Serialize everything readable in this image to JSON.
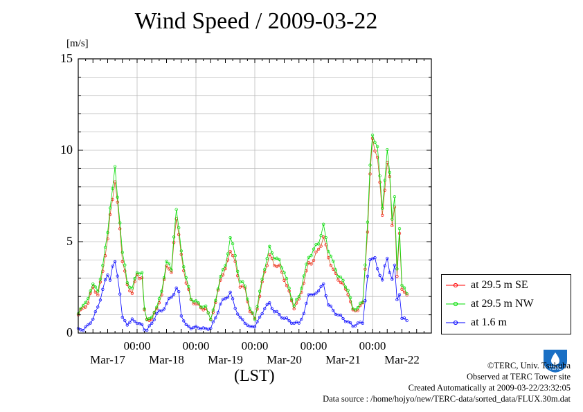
{
  "title": "Wind Speed / 2009-03-22",
  "y_unit": "[m/s]",
  "x_axis_label": "(LST)",
  "credits": [
    "©TERC, Univ. Tsukuba",
    "Observed at TERC Tower site",
    "Created Automatically at 2009-03-22/23:32:05",
    "Data source : /home/hojyo/new/TERC-data/sorted_data/FLUX.30m.dat"
  ],
  "logo_text": "TERC",
  "chart_data": {
    "type": "line",
    "ylim": [
      0,
      15
    ],
    "yticks": [
      0,
      5,
      10,
      15
    ],
    "xlim_hours": [
      0,
      144
    ],
    "x_tick_times": [
      "00:00",
      "00:00",
      "00:00",
      "00:00",
      "00:00"
    ],
    "x_dates": [
      "Mar-17",
      "Mar-18",
      "Mar-19",
      "Mar-20",
      "Mar-21",
      "Mar-22"
    ],
    "grid": true,
    "legend_position": "bottom-right",
    "series": [
      {
        "name": "at 29.5 m SE",
        "color": "#ff0000",
        "keypoints": [
          [
            0,
            1.0
          ],
          [
            2,
            1.4
          ],
          [
            4,
            1.6
          ],
          [
            6,
            2.6
          ],
          [
            8,
            2.0
          ],
          [
            10,
            3.5
          ],
          [
            12,
            5.0
          ],
          [
            13,
            6.5
          ],
          [
            14,
            7.5
          ],
          [
            15,
            8.2
          ],
          [
            16,
            7.0
          ],
          [
            17,
            5.8
          ],
          [
            18,
            4.0
          ],
          [
            20,
            2.6
          ],
          [
            22,
            2.2
          ],
          [
            24,
            3.2
          ],
          [
            26,
            3.0
          ],
          [
            27,
            1.2
          ],
          [
            28,
            0.8
          ],
          [
            30,
            0.7
          ],
          [
            32,
            1.4
          ],
          [
            34,
            2.0
          ],
          [
            36,
            3.8
          ],
          [
            38,
            3.2
          ],
          [
            39,
            5.0
          ],
          [
            40,
            6.4
          ],
          [
            41,
            5.3
          ],
          [
            42,
            4.2
          ],
          [
            44,
            2.8
          ],
          [
            46,
            1.8
          ],
          [
            48,
            1.6
          ],
          [
            50,
            1.4
          ],
          [
            52,
            1.3
          ],
          [
            54,
            0.8
          ],
          [
            56,
            1.6
          ],
          [
            58,
            3.0
          ],
          [
            60,
            3.4
          ],
          [
            62,
            4.6
          ],
          [
            64,
            3.8
          ],
          [
            66,
            2.6
          ],
          [
            68,
            2.4
          ],
          [
            70,
            1.2
          ],
          [
            72,
            0.8
          ],
          [
            74,
            2.0
          ],
          [
            76,
            3.4
          ],
          [
            78,
            4.2
          ],
          [
            80,
            3.8
          ],
          [
            82,
            3.6
          ],
          [
            84,
            3.0
          ],
          [
            86,
            2.2
          ],
          [
            88,
            1.4
          ],
          [
            90,
            1.8
          ],
          [
            92,
            2.8
          ],
          [
            94,
            3.8
          ],
          [
            96,
            4.0
          ],
          [
            98,
            4.6
          ],
          [
            100,
            5.2
          ],
          [
            102,
            4.2
          ],
          [
            104,
            3.4
          ],
          [
            106,
            3.0
          ],
          [
            108,
            2.6
          ],
          [
            110,
            2.2
          ],
          [
            112,
            1.2
          ],
          [
            114,
            1.3
          ],
          [
            116,
            1.6
          ],
          [
            118,
            5.6
          ],
          [
            119,
            8.5
          ],
          [
            120,
            10.6
          ],
          [
            121,
            10.2
          ],
          [
            122,
            9.6
          ],
          [
            124,
            6.5
          ],
          [
            125,
            8.0
          ],
          [
            126,
            9.2
          ],
          [
            127,
            8.4
          ],
          [
            128,
            6.0
          ],
          [
            129,
            7.0
          ],
          [
            130,
            3.0
          ],
          [
            131,
            5.4
          ],
          [
            132,
            2.5
          ],
          [
            134,
            2.0
          ]
        ]
      },
      {
        "name": "at 29.5 m NW",
        "color": "#00dd00",
        "keypoints": [
          [
            0,
            1.0
          ],
          [
            2,
            1.6
          ],
          [
            4,
            1.8
          ],
          [
            6,
            2.8
          ],
          [
            8,
            2.2
          ],
          [
            10,
            3.8
          ],
          [
            12,
            5.4
          ],
          [
            13,
            7.0
          ],
          [
            14,
            8.0
          ],
          [
            15,
            8.9
          ],
          [
            16,
            7.4
          ],
          [
            17,
            6.2
          ],
          [
            18,
            4.4
          ],
          [
            20,
            2.8
          ],
          [
            22,
            2.4
          ],
          [
            24,
            3.4
          ],
          [
            26,
            3.2
          ],
          [
            27,
            1.3
          ],
          [
            28,
            0.8
          ],
          [
            30,
            0.8
          ],
          [
            32,
            1.5
          ],
          [
            34,
            2.2
          ],
          [
            36,
            4.0
          ],
          [
            38,
            3.4
          ],
          [
            39,
            5.4
          ],
          [
            40,
            6.8
          ],
          [
            41,
            5.6
          ],
          [
            42,
            4.5
          ],
          [
            44,
            3.0
          ],
          [
            46,
            1.9
          ],
          [
            48,
            1.7
          ],
          [
            50,
            1.5
          ],
          [
            52,
            1.4
          ],
          [
            54,
            0.8
          ],
          [
            56,
            1.7
          ],
          [
            58,
            3.2
          ],
          [
            60,
            3.6
          ],
          [
            62,
            5.3
          ],
          [
            64,
            4.2
          ],
          [
            66,
            2.8
          ],
          [
            68,
            2.6
          ],
          [
            70,
            1.3
          ],
          [
            72,
            0.8
          ],
          [
            74,
            2.2
          ],
          [
            76,
            3.6
          ],
          [
            78,
            4.6
          ],
          [
            80,
            4.2
          ],
          [
            82,
            3.9
          ],
          [
            84,
            3.4
          ],
          [
            86,
            2.4
          ],
          [
            88,
            1.5
          ],
          [
            90,
            2.0
          ],
          [
            92,
            3.1
          ],
          [
            94,
            4.2
          ],
          [
            96,
            4.5
          ],
          [
            98,
            5.0
          ],
          [
            100,
            5.8
          ],
          [
            102,
            4.6
          ],
          [
            104,
            3.8
          ],
          [
            106,
            3.2
          ],
          [
            108,
            2.8
          ],
          [
            110,
            2.4
          ],
          [
            112,
            1.3
          ],
          [
            114,
            1.4
          ],
          [
            116,
            1.7
          ],
          [
            118,
            6.0
          ],
          [
            119,
            9.0
          ],
          [
            120,
            11.0
          ],
          [
            121,
            10.6
          ],
          [
            122,
            10.0
          ],
          [
            124,
            7.0
          ],
          [
            125,
            8.4
          ],
          [
            126,
            9.8
          ],
          [
            127,
            8.8
          ],
          [
            128,
            6.4
          ],
          [
            129,
            7.4
          ],
          [
            130,
            3.4
          ],
          [
            131,
            5.8
          ],
          [
            132,
            2.7
          ],
          [
            134,
            2.1
          ]
        ]
      },
      {
        "name": "at 1.6 m",
        "color": "#0000ff",
        "keypoints": [
          [
            0,
            0.2
          ],
          [
            2,
            0.2
          ],
          [
            4,
            0.4
          ],
          [
            6,
            0.8
          ],
          [
            8,
            1.4
          ],
          [
            10,
            2.4
          ],
          [
            12,
            3.2
          ],
          [
            13,
            3.0
          ],
          [
            14,
            3.6
          ],
          [
            15,
            3.8
          ],
          [
            16,
            3.2
          ],
          [
            17,
            2.2
          ],
          [
            18,
            0.8
          ],
          [
            20,
            0.5
          ],
          [
            22,
            0.7
          ],
          [
            24,
            0.6
          ],
          [
            26,
            0.4
          ],
          [
            27,
            0.2
          ],
          [
            28,
            0.2
          ],
          [
            30,
            0.5
          ],
          [
            32,
            1.1
          ],
          [
            34,
            1.2
          ],
          [
            36,
            1.6
          ],
          [
            38,
            2.0
          ],
          [
            39,
            2.2
          ],
          [
            40,
            2.4
          ],
          [
            41,
            2.2
          ],
          [
            42,
            1.0
          ],
          [
            44,
            0.4
          ],
          [
            46,
            0.3
          ],
          [
            48,
            0.3
          ],
          [
            50,
            0.3
          ],
          [
            52,
            0.2
          ],
          [
            54,
            0.3
          ],
          [
            56,
            0.8
          ],
          [
            58,
            1.6
          ],
          [
            60,
            1.9
          ],
          [
            62,
            2.2
          ],
          [
            64,
            1.4
          ],
          [
            66,
            0.8
          ],
          [
            68,
            0.6
          ],
          [
            70,
            0.3
          ],
          [
            72,
            0.4
          ],
          [
            74,
            0.8
          ],
          [
            76,
            1.4
          ],
          [
            78,
            1.6
          ],
          [
            80,
            1.2
          ],
          [
            82,
            1.0
          ],
          [
            84,
            0.8
          ],
          [
            86,
            0.7
          ],
          [
            88,
            0.5
          ],
          [
            90,
            0.6
          ],
          [
            92,
            1.0
          ],
          [
            94,
            2.2
          ],
          [
            96,
            2.0
          ],
          [
            98,
            2.4
          ],
          [
            100,
            2.6
          ],
          [
            102,
            1.6
          ],
          [
            104,
            1.2
          ],
          [
            106,
            1.0
          ],
          [
            108,
            0.8
          ],
          [
            110,
            0.6
          ],
          [
            112,
            0.4
          ],
          [
            114,
            0.5
          ],
          [
            116,
            0.6
          ],
          [
            118,
            3.0
          ],
          [
            119,
            4.0
          ],
          [
            120,
            4.2
          ],
          [
            121,
            4.1
          ],
          [
            122,
            3.4
          ],
          [
            124,
            3.0
          ],
          [
            125,
            3.6
          ],
          [
            126,
            4.0
          ],
          [
            127,
            3.4
          ],
          [
            128,
            3.0
          ],
          [
            129,
            3.6
          ],
          [
            130,
            1.8
          ],
          [
            131,
            2.2
          ],
          [
            132,
            0.8
          ],
          [
            134,
            0.7
          ]
        ]
      }
    ]
  }
}
